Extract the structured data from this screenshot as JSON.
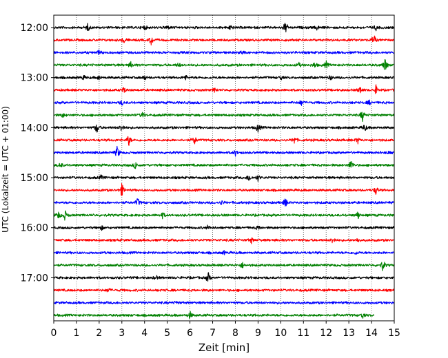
{
  "chart_data": {
    "type": "line",
    "title": "",
    "xlabel": "Zeit  [min]",
    "ylabel": "UTC (Lokalzeit = UTC + 01:00)",
    "xlim": [
      0,
      15
    ],
    "x_ticks": [
      "0",
      "1",
      "2",
      "3",
      "4",
      "5",
      "6",
      "7",
      "8",
      "9",
      "10",
      "11",
      "12",
      "13",
      "14",
      "15"
    ],
    "y_tick_labels": [
      "12:00",
      "13:00",
      "14:00",
      "15:00",
      "16:00",
      "17:00"
    ],
    "y_tick_rows": [
      0,
      4,
      8,
      12,
      16,
      20
    ],
    "vertical_grid": "dotted",
    "colors": {
      "black": "#000000",
      "red": "#ff0000",
      "blue": "#0000ff",
      "green": "#008000"
    },
    "series": [
      {
        "start": "12:00",
        "color": "black",
        "events": [
          [
            1.5,
            0.5
          ],
          [
            4.0,
            0.3
          ],
          [
            5.0,
            0.3
          ],
          [
            7.8,
            0.4
          ],
          [
            10.2,
            0.9
          ],
          [
            11.6,
            0.3
          ],
          [
            14.2,
            0.3
          ]
        ]
      },
      {
        "start": "12:15",
        "color": "red",
        "events": [
          [
            3.1,
            0.4
          ],
          [
            4.3,
            0.7
          ],
          [
            14.1,
            0.8
          ]
        ]
      },
      {
        "start": "12:30",
        "color": "blue",
        "events": [
          [
            2.0,
            0.3
          ],
          [
            8.3,
            0.3
          ]
        ]
      },
      {
        "start": "12:45",
        "color": "green",
        "events": [
          [
            3.4,
            0.4
          ],
          [
            5.5,
            0.3
          ],
          [
            10.8,
            0.3
          ],
          [
            11.5,
            0.4
          ],
          [
            12.0,
            0.5
          ],
          [
            14.6,
            1.0
          ]
        ]
      },
      {
        "start": "13:00",
        "color": "black",
        "events": [
          [
            1.3,
            0.3
          ],
          [
            2.0,
            0.3
          ],
          [
            4.0,
            0.3
          ],
          [
            5.8,
            0.3
          ],
          [
            10.0,
            0.3
          ],
          [
            12.2,
            0.3
          ]
        ]
      },
      {
        "start": "13:15",
        "color": "red",
        "events": [
          [
            3.1,
            0.4
          ],
          [
            7.1,
            0.3
          ],
          [
            13.5,
            0.5
          ],
          [
            14.2,
            0.6
          ]
        ]
      },
      {
        "start": "13:30",
        "color": "blue",
        "events": [
          [
            3.0,
            0.3
          ],
          [
            10.9,
            0.4
          ],
          [
            13.9,
            0.3
          ]
        ]
      },
      {
        "start": "13:45",
        "color": "green",
        "events": [
          [
            0.4,
            0.3
          ],
          [
            3.9,
            0.4
          ],
          [
            13.6,
            0.8
          ]
        ]
      },
      {
        "start": "14:00",
        "color": "black",
        "events": [
          [
            1.9,
            0.8
          ],
          [
            3.0,
            0.6
          ],
          [
            9.0,
            0.6
          ],
          [
            13.7,
            0.5
          ]
        ]
      },
      {
        "start": "14:15",
        "color": "red",
        "events": [
          [
            3.3,
            0.8
          ],
          [
            6.2,
            0.6
          ],
          [
            10.6,
            0.5
          ],
          [
            13.4,
            0.4
          ]
        ]
      },
      {
        "start": "14:30",
        "color": "blue",
        "events": [
          [
            2.8,
            0.9
          ],
          [
            8.0,
            0.4
          ],
          [
            14.8,
            0.3
          ]
        ]
      },
      {
        "start": "14:45",
        "color": "green",
        "events": [
          [
            0.3,
            0.4
          ],
          [
            3.6,
            0.5
          ],
          [
            13.1,
            0.8
          ]
        ]
      },
      {
        "start": "15:00",
        "color": "black",
        "events": [
          [
            2.1,
            0.3
          ],
          [
            8.6,
            0.5
          ],
          [
            9.0,
            0.4
          ]
        ]
      },
      {
        "start": "15:15",
        "color": "red",
        "events": [
          [
            3.0,
            0.9
          ],
          [
            14.2,
            0.6
          ]
        ]
      },
      {
        "start": "15:30",
        "color": "blue",
        "events": [
          [
            3.7,
            0.6
          ],
          [
            7.4,
            0.3
          ],
          [
            10.2,
            0.6
          ]
        ]
      },
      {
        "start": "15:45",
        "color": "green",
        "events": [
          [
            0.2,
            0.5
          ],
          [
            0.5,
            0.7
          ],
          [
            4.8,
            0.4
          ],
          [
            13.4,
            0.5
          ]
        ]
      },
      {
        "start": "16:00",
        "color": "black",
        "events": [
          [
            2.1,
            0.3
          ],
          [
            6.8,
            0.3
          ],
          [
            9.0,
            0.3
          ]
        ]
      },
      {
        "start": "16:15",
        "color": "red",
        "events": [
          [
            8.7,
            0.4
          ],
          [
            12.3,
            0.5
          ],
          [
            13.4,
            0.3
          ]
        ]
      },
      {
        "start": "16:30",
        "color": "blue",
        "events": [
          [
            7.5,
            0.2
          ],
          [
            13.3,
            0.2
          ]
        ]
      },
      {
        "start": "16:45",
        "color": "green",
        "events": [
          [
            8.3,
            0.4
          ],
          [
            14.5,
            0.9
          ]
        ]
      },
      {
        "start": "17:00",
        "color": "black",
        "events": [
          [
            4.5,
            0.3
          ],
          [
            6.8,
            0.7
          ]
        ]
      },
      {
        "start": "17:15",
        "color": "red",
        "events": [
          [
            2.4,
            0.3
          ]
        ]
      },
      {
        "start": "17:30",
        "color": "blue",
        "events": [
          [
            5.4,
            0.2
          ]
        ]
      },
      {
        "start": "17:45",
        "color": "green",
        "events": [
          [
            6.0,
            0.5
          ],
          [
            13.6,
            0.4
          ]
        ],
        "end_x": 14.1
      }
    ]
  }
}
